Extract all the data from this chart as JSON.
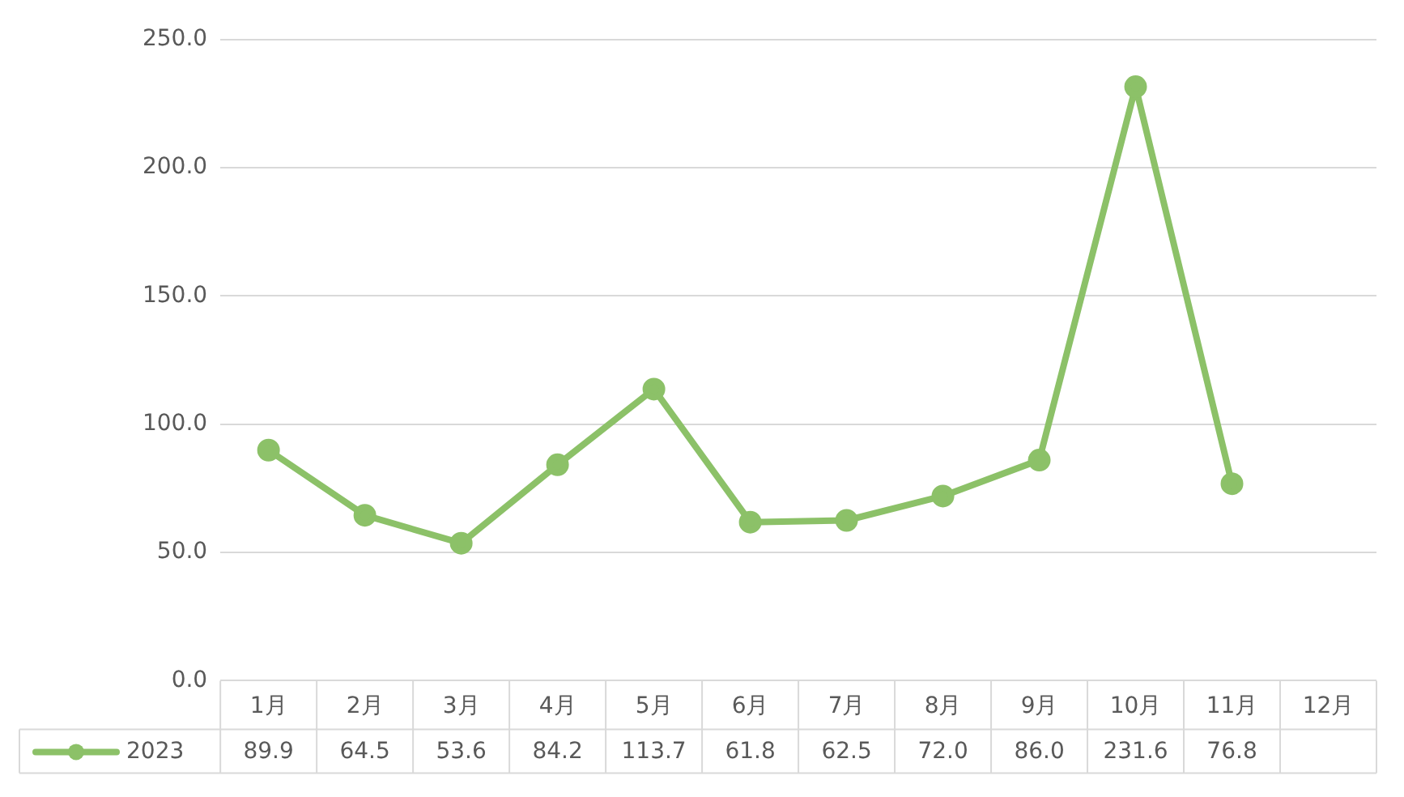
{
  "chart_data": {
    "type": "line",
    "categories": [
      "1月",
      "2月",
      "3月",
      "4月",
      "5月",
      "6月",
      "7月",
      "8月",
      "9月",
      "10月",
      "11月",
      "12月"
    ],
    "series": [
      {
        "name": "2023",
        "color": "#8cc168",
        "values": [
          89.9,
          64.5,
          53.6,
          84.2,
          113.7,
          61.8,
          62.5,
          72.0,
          86.0,
          231.6,
          76.8,
          null
        ],
        "value_labels": [
          "89.9",
          "64.5",
          "53.6",
          "84.2",
          "113.7",
          "61.8",
          "62.5",
          "72.0",
          "86.0",
          "231.6",
          "76.8",
          null
        ]
      }
    ],
    "ylim": [
      0,
      250
    ],
    "yticks": [
      {
        "value": 0,
        "label": "0.0"
      },
      {
        "value": 50,
        "label": "50.0"
      },
      {
        "value": 100,
        "label": "100.0"
      },
      {
        "value": 150,
        "label": "150.0"
      },
      {
        "value": 200,
        "label": "200.0"
      },
      {
        "value": 250,
        "label": "250.0"
      }
    ],
    "grid": "y",
    "legend": "bottom",
    "marker": "circle",
    "line_style": "solid"
  }
}
